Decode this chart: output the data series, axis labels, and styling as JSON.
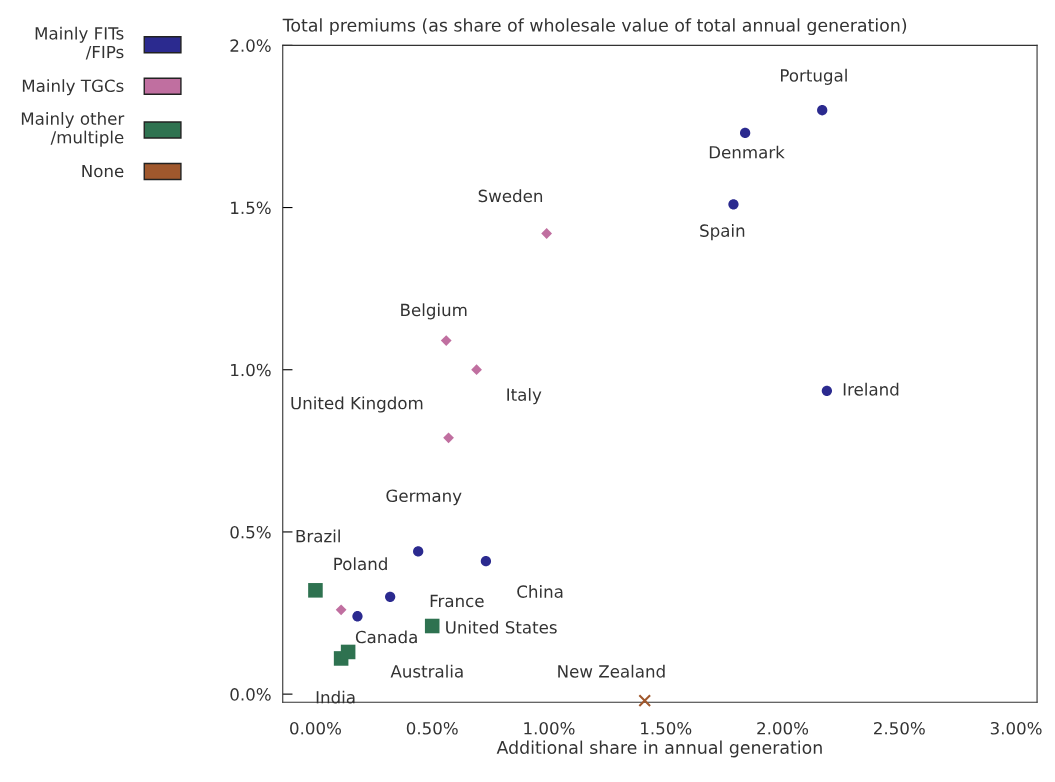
{
  "chart_data": {
    "type": "scatter",
    "title": "Total premiums (as share of wholesale value of total annual generation)",
    "xlabel": "Additional share in annual generation",
    "series": [
      {
        "name": "Mainly FITs\n/FIPs",
        "color": "#2b2a8f",
        "marker": "circle",
        "x": [
          2.17,
          1.84,
          1.79,
          2.19,
          0.44,
          0.73,
          0.32,
          0.18
        ],
        "values": [
          1.8,
          1.73,
          1.51,
          0.935,
          0.44,
          0.41,
          0.3,
          0.24
        ]
      },
      {
        "name": "Mainly TGCs",
        "color": "#c06fa0",
        "marker": "diamond",
        "x": [
          0.99,
          0.56,
          0.69,
          0.57,
          0.11
        ],
        "values": [
          1.42,
          1.09,
          1.0,
          0.79,
          0.26
        ]
      },
      {
        "name": "Mainly other\n/multiple",
        "color": "#2e7250",
        "marker": "square",
        "x": [
          0.0,
          0.5,
          0.11,
          0.14
        ],
        "values": [
          0.32,
          0.21,
          0.11,
          0.13
        ]
      },
      {
        "name": "None",
        "color": "#a0582d",
        "marker": "cross",
        "x": [
          1.41
        ],
        "values": [
          -0.02
        ]
      }
    ],
    "annotations": [
      {
        "text": "Portugal",
        "x": 2.17,
        "y": 1.8
      },
      {
        "text": "Denmark",
        "x": 1.84,
        "y": 1.73
      },
      {
        "text": "Spain",
        "x": 1.79,
        "y": 1.51
      },
      {
        "text": "Ireland",
        "x": 2.19,
        "y": 0.935
      },
      {
        "text": "Germany",
        "x": 0.44,
        "y": 0.44
      },
      {
        "text": "China",
        "x": 0.73,
        "y": 0.41
      },
      {
        "text": "France",
        "x": 0.32,
        "y": 0.3
      },
      {
        "text": "Canada",
        "x": 0.18,
        "y": 0.24
      },
      {
        "text": "Sweden",
        "x": 0.99,
        "y": 1.42
      },
      {
        "text": "Belgium",
        "x": 0.56,
        "y": 1.09
      },
      {
        "text": "Italy",
        "x": 0.69,
        "y": 1.0
      },
      {
        "text": "United Kingdom",
        "x": 0.57,
        "y": 0.79
      },
      {
        "text": "Poland",
        "x": 0.11,
        "y": 0.26
      },
      {
        "text": "Brazil",
        "x": 0.0,
        "y": 0.32
      },
      {
        "text": "United States",
        "x": 0.5,
        "y": 0.21
      },
      {
        "text": "India",
        "x": 0.11,
        "y": 0.11
      },
      {
        "text": "Australia",
        "x": 0.14,
        "y": 0.13
      },
      {
        "text": "New Zealand",
        "x": 1.41,
        "y": -0.02
      }
    ],
    "xlim": [
      -0.14,
      3.09
    ],
    "ylim": [
      -0.025,
      2.0
    ],
    "xticks": [
      {
        "value": 0,
        "label": "0.00%"
      },
      {
        "value": 0.5,
        "label": "0.50%"
      },
      {
        "value": 1.0,
        "label": "1.00%"
      },
      {
        "value": 1.5,
        "label": "1.50%"
      },
      {
        "value": 2.0,
        "label": "2.00%"
      },
      {
        "value": 2.5,
        "label": "2.50%"
      },
      {
        "value": 3.0,
        "label": "3.00%"
      }
    ],
    "yticks": [
      {
        "value": 0,
        "label": "0.0%"
      },
      {
        "value": 0.5,
        "label": "0.5%"
      },
      {
        "value": 1.0,
        "label": "1.0%"
      },
      {
        "value": 1.5,
        "label": "1.5%"
      },
      {
        "value": 2.0,
        "label": "2.0%"
      }
    ],
    "legend": "top left",
    "grid": false
  }
}
